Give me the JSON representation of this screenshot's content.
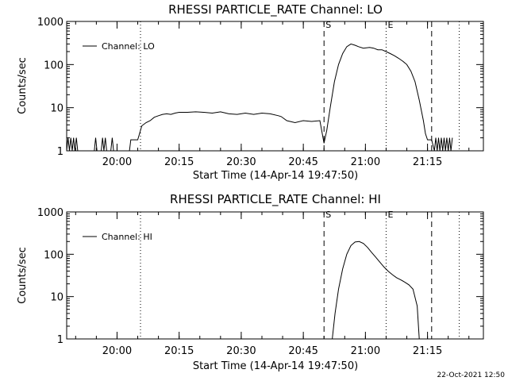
{
  "footer": {
    "timestamp": "22-Oct-2021 12:50"
  },
  "chart_data": [
    {
      "type": "line",
      "title": "RHESSI PARTICLE_RATE Channel: LO",
      "xlabel": "Start Time (14-Apr-14 19:47:50)",
      "ylabel": "Counts/sec",
      "y_scale": "log",
      "ylim": [
        1,
        1000
      ],
      "xlim": [
        "19:47:50",
        "21:28:30"
      ],
      "y_ticks": [
        "1",
        "10",
        "100",
        "1000"
      ],
      "x_ticks": [
        "20:00",
        "20:15",
        "20:30",
        "20:45",
        "21:00",
        "21:15"
      ],
      "legend": {
        "position": "top-left",
        "entries": [
          "Channel: LO"
        ]
      },
      "markers": [
        {
          "x": "20:05:40",
          "style": "dotted",
          "label": ""
        },
        {
          "x": "20:50:00",
          "style": "dashed",
          "label": "S"
        },
        {
          "x": "21:05:00",
          "style": "dotted",
          "label": "E"
        },
        {
          "x": "21:16:00",
          "style": "dashed",
          "label": ""
        },
        {
          "x": "21:22:40",
          "style": "dotted",
          "label": ""
        }
      ],
      "series": [
        {
          "name": "Channel: LO",
          "x": [
            "19:47:50",
            "19:48:10",
            "19:48:30",
            "19:48:50",
            "19:49:10",
            "19:49:30",
            "19:49:50",
            "19:50:10",
            "19:50:30",
            "19:54:30",
            "19:54:50",
            "19:55:10",
            "19:56:10",
            "19:56:30",
            "19:56:50",
            "19:57:10",
            "19:57:30",
            "19:58:30",
            "19:58:50",
            "19:59:10",
            "20:03:00",
            "20:03:20",
            "20:05:00",
            "20:06:00",
            "20:07:00",
            "20:08:00",
            "20:09:00",
            "20:10:00",
            "20:11:00",
            "20:12:00",
            "20:13:00",
            "20:14:00",
            "20:15:00",
            "20:17:00",
            "20:19:00",
            "20:21:00",
            "20:23:00",
            "20:25:00",
            "20:27:00",
            "20:29:00",
            "20:31:00",
            "20:33:00",
            "20:35:00",
            "20:37:00",
            "20:39:00",
            "20:39:40",
            "20:41:00",
            "20:43:00",
            "20:45:00",
            "20:47:00",
            "20:49:00",
            "20:50:00",
            "20:50:40",
            "20:51:30",
            "20:52:30",
            "20:53:30",
            "20:54:30",
            "20:55:30",
            "20:56:30",
            "20:57:30",
            "20:58:20",
            "20:59:30",
            "21:01:00",
            "21:02:00",
            "21:03:00",
            "21:04:00",
            "21:05:00",
            "21:06:00",
            "21:07:00",
            "21:08:00",
            "21:09:00",
            "21:10:00",
            "21:11:00",
            "21:12:00",
            "21:13:00",
            "21:14:00",
            "21:14:30",
            "21:15:00",
            "21:16:00",
            "21:16:40",
            "21:17:00",
            "21:17:20",
            "21:17:40",
            "21:18:00",
            "21:18:20",
            "21:18:40",
            "21:19:00",
            "21:19:20",
            "21:19:40",
            "21:20:00",
            "21:20:20",
            "21:20:40",
            "21:21:00"
          ],
          "y": [
            1,
            2,
            1,
            2,
            1,
            2,
            1,
            2,
            1,
            1,
            2,
            1,
            1,
            2,
            1,
            2,
            1,
            1,
            2,
            1,
            1,
            1.8,
            1.8,
            3.8,
            4.5,
            5,
            6,
            6.5,
            7,
            7.2,
            7,
            7.5,
            7.8,
            7.8,
            8,
            7.8,
            7.5,
            8,
            7.2,
            7,
            7.5,
            7,
            7.5,
            7.2,
            6.5,
            6.2,
            5,
            4.5,
            5,
            4.8,
            5,
            1.5,
            3,
            10,
            40,
            100,
            180,
            260,
            300,
            280,
            260,
            240,
            250,
            240,
            220,
            220,
            200,
            180,
            160,
            140,
            120,
            100,
            70,
            40,
            15,
            5,
            2.5,
            1.8,
            1.8,
            1,
            2,
            1,
            2,
            1,
            2,
            1,
            2,
            1,
            2,
            1,
            2,
            1,
            2
          ]
        }
      ]
    },
    {
      "type": "line",
      "title": "RHESSI PARTICLE_RATE Channel: HI",
      "xlabel": "Start Time (14-Apr-14 19:47:50)",
      "ylabel": "Counts/sec",
      "y_scale": "log",
      "ylim": [
        1,
        1000
      ],
      "xlim": [
        "19:47:50",
        "21:28:30"
      ],
      "y_ticks": [
        "1",
        "10",
        "100",
        "1000"
      ],
      "x_ticks": [
        "20:00",
        "20:15",
        "20:30",
        "20:45",
        "21:00",
        "21:15"
      ],
      "legend": {
        "position": "top-left",
        "entries": [
          "Channel: HI"
        ]
      },
      "markers": [
        {
          "x": "20:05:40",
          "style": "dotted",
          "label": ""
        },
        {
          "x": "20:50:00",
          "style": "dashed",
          "label": "S"
        },
        {
          "x": "21:05:00",
          "style": "dotted",
          "label": "E"
        },
        {
          "x": "21:16:00",
          "style": "dashed",
          "label": ""
        },
        {
          "x": "21:22:40",
          "style": "dotted",
          "label": ""
        }
      ],
      "series": [
        {
          "name": "Channel: HI",
          "x": [
            "20:52:00",
            "20:52:40",
            "20:53:30",
            "20:54:30",
            "20:55:30",
            "20:56:30",
            "20:57:30",
            "20:58:30",
            "20:59:30",
            "21:00:30",
            "21:01:30",
            "21:02:30",
            "21:03:30",
            "21:04:30",
            "21:05:30",
            "21:06:30",
            "21:07:30",
            "21:08:30",
            "21:09:30",
            "21:10:30",
            "21:11:30",
            "21:12:30",
            "21:13:00"
          ],
          "y": [
            1,
            4,
            15,
            45,
            100,
            160,
            195,
            200,
            180,
            145,
            110,
            85,
            65,
            50,
            40,
            33,
            28,
            25,
            22,
            19,
            15,
            6,
            1
          ]
        }
      ]
    }
  ]
}
